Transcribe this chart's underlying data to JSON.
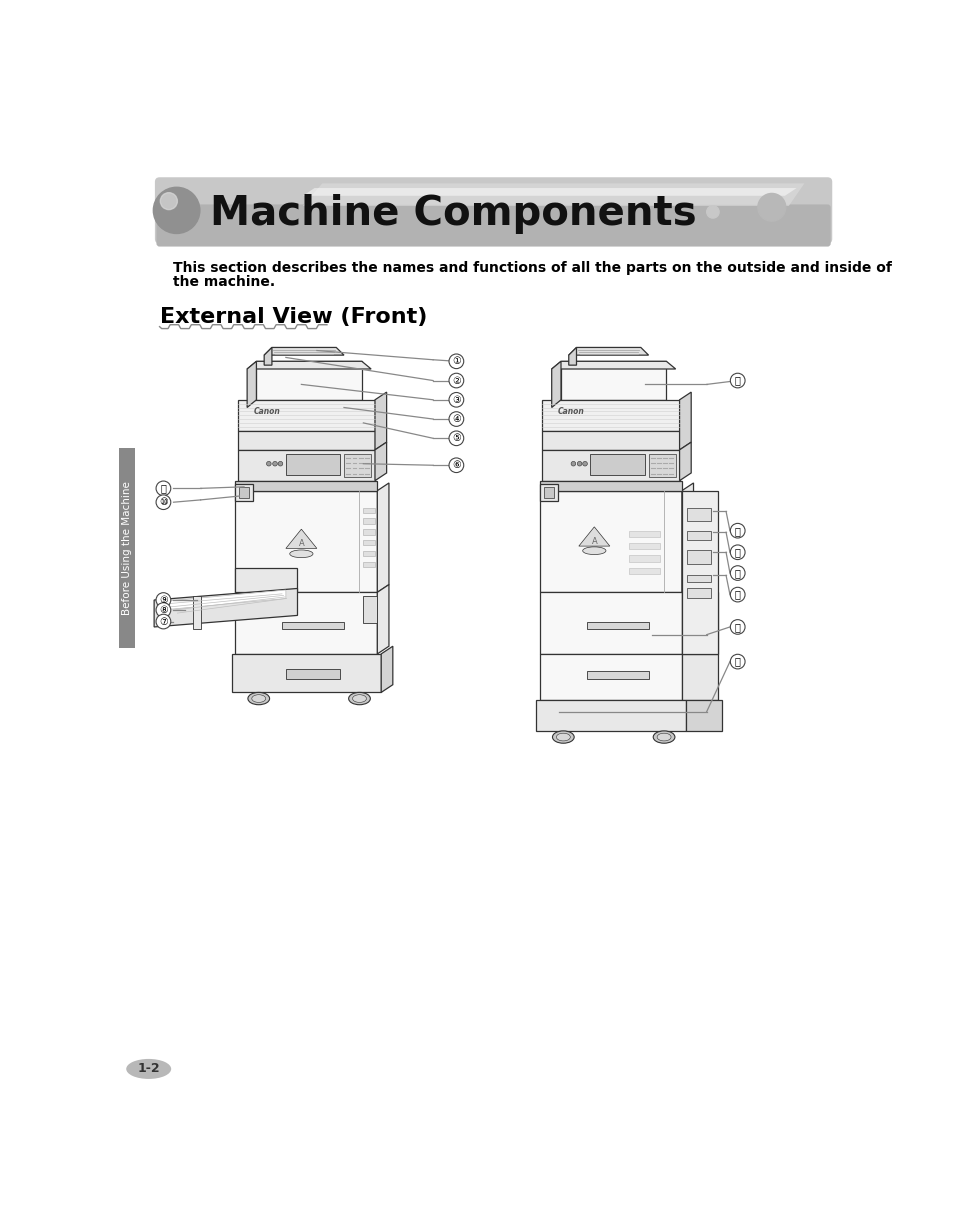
{
  "title": "Machine Components",
  "subtitle_line1": "This section describes the names and functions of all the parts on the outside and inside of",
  "subtitle_line2": "the machine.",
  "section_title": "External View (Front)",
  "page_number": "1-2",
  "sidebar_text": "Before Using the Machine",
  "bg_color": "#ffffff",
  "banner_color": "#cccccc",
  "banner_dark": "#aaaaaa",
  "header_text_color": "#111111",
  "sidebar_color": "#888888",
  "line_color": "#888888",
  "callout_circle_color": "#444444",
  "printer_edge": "#333333",
  "printer_fill_light": "#f8f8f8",
  "printer_fill_mid": "#e8e8e8",
  "printer_fill_dark": "#d4d4d4"
}
